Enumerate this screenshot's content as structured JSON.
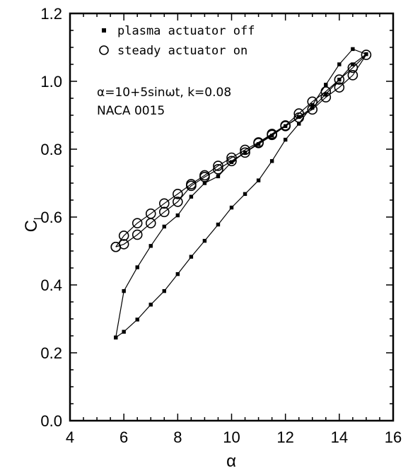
{
  "chart_data": {
    "type": "line",
    "xlabel": "α",
    "ylabel_main": "C",
    "ylabel_sub": "l",
    "xlim": [
      4,
      16
    ],
    "ylim": [
      0.0,
      1.2
    ],
    "xticks": [
      "4",
      "6",
      "8",
      "10",
      "12",
      "14",
      "16"
    ],
    "yticks": [
      "0.0",
      "0.2",
      "0.4",
      "0.6",
      "0.8",
      "1.0",
      "1.2"
    ],
    "grid": false,
    "legend_position": "top-left",
    "annotations": [
      "α=10+5sinωt, k=0.08",
      "NACA 0015"
    ],
    "series": [
      {
        "name": "plasma actuator off",
        "marker": "filled-square",
        "x": [
          5.7,
          6.0,
          6.5,
          7.0,
          7.5,
          8.0,
          8.5,
          9.0,
          9.5,
          10.0,
          10.5,
          11.0,
          11.5,
          12.0,
          12.5,
          13.0,
          13.5,
          14.0,
          14.5,
          15.0,
          14.5,
          14.0,
          13.5,
          13.0,
          12.5,
          12.0,
          11.5,
          11.0,
          10.5,
          10.0,
          9.5,
          9.0,
          8.5,
          8.0,
          7.5,
          7.0,
          6.5,
          6.0,
          5.7
        ],
        "y": [
          0.245,
          0.262,
          0.298,
          0.342,
          0.382,
          0.432,
          0.483,
          0.53,
          0.578,
          0.628,
          0.668,
          0.708,
          0.765,
          0.828,
          0.875,
          0.93,
          0.99,
          1.05,
          1.095,
          1.08,
          1.05,
          1.005,
          0.962,
          0.922,
          0.895,
          0.868,
          0.84,
          0.815,
          0.79,
          0.762,
          0.72,
          0.7,
          0.66,
          0.605,
          0.572,
          0.515,
          0.452,
          0.382,
          0.245
        ]
      },
      {
        "name": "steady actuator on",
        "marker": "open-circle",
        "x": [
          5.7,
          6.0,
          6.5,
          7.0,
          7.5,
          8.0,
          8.5,
          9.0,
          9.5,
          10.0,
          10.5,
          11.0,
          11.5,
          12.0,
          12.5,
          13.0,
          13.5,
          14.0,
          14.5,
          15.0,
          14.5,
          14.0,
          13.5,
          13.0,
          12.5,
          12.0,
          11.5,
          11.0,
          10.5,
          10.0,
          9.5,
          9.0,
          8.5,
          8.0,
          7.5,
          7.0,
          6.5,
          6.0,
          5.7
        ],
        "y": [
          0.512,
          0.545,
          0.582,
          0.61,
          0.64,
          0.668,
          0.697,
          0.723,
          0.751,
          0.775,
          0.798,
          0.82,
          0.845,
          0.87,
          0.905,
          0.94,
          0.97,
          1.005,
          1.04,
          1.078,
          1.018,
          0.982,
          0.953,
          0.917,
          0.893,
          0.868,
          0.842,
          0.818,
          0.79,
          0.765,
          0.741,
          0.718,
          0.692,
          0.645,
          0.615,
          0.582,
          0.548,
          0.52,
          0.512
        ]
      }
    ]
  }
}
